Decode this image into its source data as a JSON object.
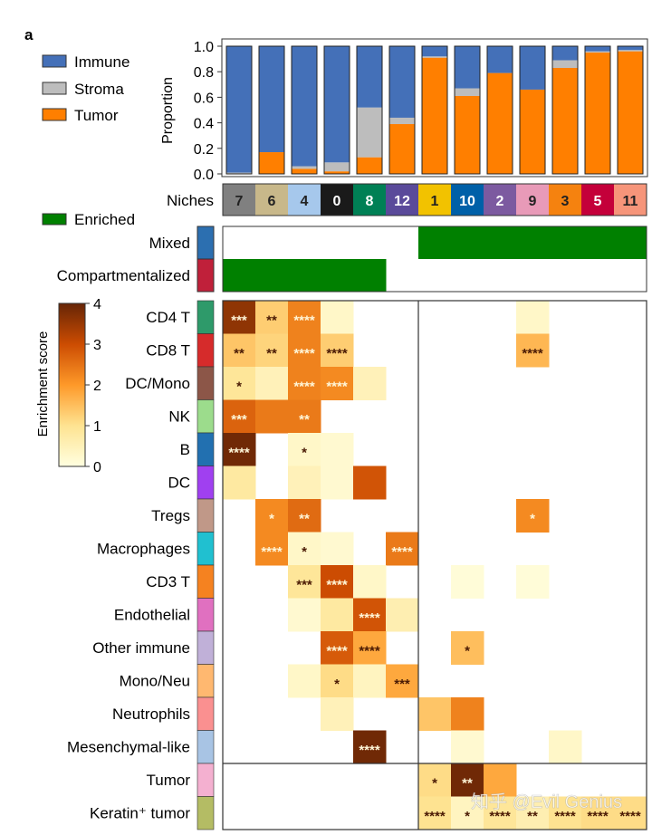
{
  "panel_label": "a",
  "chart_data": [
    {
      "type": "bar",
      "stacked": true,
      "title": "",
      "ylabel": "Proportion",
      "xlabel": "Niches",
      "ylim": [
        0,
        1.0
      ],
      "yticks": [
        "0.0",
        "0.2",
        "0.4",
        "0.6",
        "0.8",
        "1.0"
      ],
      "categories": [
        "7",
        "6",
        "4",
        "0",
        "8",
        "12",
        "1",
        "10",
        "2",
        "9",
        "3",
        "5",
        "11"
      ],
      "category_colors": [
        "#808080",
        "#c8b88a",
        "#a6c8ec",
        "#1a1a1a",
        "#008055",
        "#5a4a9a",
        "#f2c200",
        "#0060a8",
        "#7c5aa0",
        "#e89ab8",
        "#f5820f",
        "#c4003a",
        "#f6957a"
      ],
      "category_text_colors": [
        "#222222",
        "#222222",
        "#222222",
        "#ffffff",
        "#ffffff",
        "#ffffff",
        "#222222",
        "#ffffff",
        "#ffffff",
        "#222222",
        "#222222",
        "#ffffff",
        "#222222"
      ],
      "series": [
        {
          "name": "Tumor",
          "color": "#ff7f00",
          "values": [
            0.0,
            0.17,
            0.04,
            0.02,
            0.13,
            0.39,
            0.91,
            0.61,
            0.79,
            0.66,
            0.83,
            0.95,
            0.96
          ]
        },
        {
          "name": "Stroma",
          "color": "#bdbdbd",
          "values": [
            0.01,
            0.0,
            0.02,
            0.07,
            0.39,
            0.05,
            0.01,
            0.06,
            0.0,
            0.0,
            0.06,
            0.01,
            0.01
          ]
        },
        {
          "name": "Immune",
          "color": "#4470b8",
          "values": [
            0.99,
            0.83,
            0.94,
            0.91,
            0.48,
            0.56,
            0.08,
            0.33,
            0.21,
            0.34,
            0.11,
            0.04,
            0.03
          ]
        }
      ],
      "legend": {
        "position": "top-left",
        "items": [
          "Immune",
          "Stroma",
          "Tumor"
        ]
      }
    },
    {
      "type": "heatmap",
      "title": "Niche type",
      "legend": {
        "label": "Enriched",
        "color": "#008000"
      },
      "rows": [
        {
          "label": "Mixed",
          "color": "#2c6fb0",
          "enriched": [
            0,
            0,
            0,
            0,
            0,
            0,
            1,
            1,
            1,
            1,
            1,
            1,
            1
          ]
        },
        {
          "label": "Compartmentalized",
          "color": "#c0203a",
          "enriched": [
            1,
            1,
            1,
            1,
            1,
            0,
            0,
            0,
            0,
            0,
            0,
            0,
            0
          ]
        }
      ]
    },
    {
      "type": "heatmap",
      "colorbar": {
        "label": "Enrichment score",
        "range": [
          0,
          4
        ],
        "ticks": [
          "0",
          "1",
          "2",
          "3",
          "4"
        ]
      },
      "columns": [
        "7",
        "6",
        "4",
        "0",
        "8",
        "12",
        "1",
        "10",
        "2",
        "9",
        "3",
        "5",
        "11"
      ],
      "rows": [
        {
          "label": "CD4 T",
          "color": "#2e9a6a",
          "scores": [
            3.6,
            1.3,
            2.3,
            0.3,
            0,
            0,
            0,
            0,
            0,
            0.3,
            0,
            0,
            0
          ],
          "sig": [
            "***",
            "**",
            "****",
            "",
            "",
            "",
            "",
            "",
            "",
            "",
            "",
            "",
            ""
          ]
        },
        {
          "label": "CD8 T",
          "color": "#d62b2b",
          "scores": [
            1.4,
            1.2,
            2.3,
            1.3,
            0,
            0,
            0,
            0,
            0,
            1.6,
            0,
            0,
            0
          ],
          "sig": [
            "**",
            "**",
            "****",
            "****",
            "",
            "",
            "",
            "",
            "",
            "****",
            "",
            "",
            ""
          ]
        },
        {
          "label": "DC/Mono",
          "color": "#8c5648",
          "scores": [
            0.9,
            0.5,
            2.3,
            2.2,
            0.5,
            0,
            0,
            0,
            0,
            0,
            0,
            0,
            0
          ],
          "sig": [
            "*",
            "",
            "****",
            "****",
            "",
            "",
            "",
            "",
            "",
            "",
            "",
            "",
            ""
          ]
        },
        {
          "label": "NK",
          "color": "#9cdc8c",
          "scores": [
            2.7,
            2.4,
            2.4,
            0,
            0,
            0,
            0,
            0,
            0,
            0,
            0,
            0,
            0
          ],
          "sig": [
            "***",
            "",
            "**",
            "",
            "",
            "",
            "",
            "",
            "",
            "",
            "",
            "",
            ""
          ]
        },
        {
          "label": "B",
          "color": "#2270b0",
          "scores": [
            3.9,
            0,
            0.3,
            0.2,
            0,
            0,
            0,
            0,
            0,
            0,
            0,
            0,
            0
          ],
          "sig": [
            "****",
            "",
            "*",
            "",
            "",
            "",
            "",
            "",
            "",
            "",
            "",
            "",
            ""
          ]
        },
        {
          "label": "DC",
          "color": "#a040f0",
          "scores": [
            0.8,
            0,
            0.5,
            0.2,
            2.9,
            0,
            0,
            0,
            0,
            0,
            0,
            0,
            0
          ],
          "sig": [
            "",
            "",
            "",
            "",
            "",
            "",
            "",
            "",
            "",
            "",
            "",
            "",
            ""
          ]
        },
        {
          "label": "Tregs",
          "color": "#c09888",
          "scores": [
            0,
            2.2,
            2.6,
            0,
            0,
            0,
            0,
            0,
            0,
            2.2,
            0,
            0,
            0
          ],
          "sig": [
            "",
            "*",
            "**",
            "",
            "",
            "",
            "",
            "",
            "",
            "*",
            "",
            "",
            ""
          ]
        },
        {
          "label": "Macrophages",
          "color": "#20c0d0",
          "scores": [
            0,
            2.2,
            0.3,
            0.2,
            0,
            2.4,
            0,
            0,
            0,
            0,
            0,
            0,
            0
          ],
          "sig": [
            "",
            "****",
            "*",
            "",
            "",
            "****",
            "",
            "",
            "",
            "",
            "",
            "",
            ""
          ]
        },
        {
          "label": "CD3 T",
          "color": "#f58220",
          "scores": [
            0,
            0,
            0.9,
            3.0,
            0.3,
            0,
            0,
            0.1,
            0,
            0.1,
            0,
            0,
            0
          ],
          "sig": [
            "",
            "",
            "***",
            "****",
            "",
            "",
            "",
            "",
            "",
            "",
            "",
            "",
            ""
          ]
        },
        {
          "label": "Endothelial",
          "color": "#e070c0",
          "scores": [
            0,
            0,
            0.2,
            0.8,
            2.9,
            0.6,
            0,
            0,
            0,
            0,
            0,
            0,
            0
          ],
          "sig": [
            "",
            "",
            "",
            "",
            "****",
            "",
            "",
            "",
            "",
            "",
            "",
            "",
            ""
          ]
        },
        {
          "label": "Other immune",
          "color": "#c0b0d8",
          "scores": [
            0,
            0,
            0,
            2.8,
            1.8,
            0,
            0,
            1.5,
            0,
            0,
            0,
            0,
            0
          ],
          "sig": [
            "",
            "",
            "",
            "****",
            "****",
            "",
            "",
            "*",
            "",
            "",
            "",
            "",
            ""
          ]
        },
        {
          "label": "Mono/Neu",
          "color": "#ffb870",
          "scores": [
            0,
            0,
            0.3,
            1.1,
            0.4,
            1.8,
            0,
            0,
            0,
            0,
            0,
            0,
            0
          ],
          "sig": [
            "",
            "",
            "",
            "*",
            "",
            "***",
            "",
            "",
            "",
            "",
            "",
            "",
            ""
          ]
        },
        {
          "label": "Neutrophils",
          "color": "#fa9090",
          "scores": [
            0,
            0,
            0,
            0.5,
            0,
            0,
            1.4,
            2.3,
            0,
            0,
            0,
            0,
            0
          ],
          "sig": [
            "",
            "",
            "",
            "",
            "",
            "",
            "",
            "",
            "",
            "",
            "",
            "",
            ""
          ]
        },
        {
          "label": "Mesenchymal-like",
          "color": "#a8c4e4",
          "scores": [
            0,
            0,
            0,
            0,
            3.9,
            0,
            0,
            0.2,
            0,
            0,
            0.3,
            0,
            0
          ],
          "sig": [
            "",
            "",
            "",
            "",
            "****",
            "",
            "",
            "",
            "",
            "",
            "",
            "",
            ""
          ]
        },
        {
          "label": "Tumor",
          "color": "#f4b0d0",
          "scores": [
            0,
            0,
            0,
            0,
            0,
            0,
            1.1,
            3.9,
            1.8,
            0,
            0,
            0,
            0
          ],
          "sig": [
            "",
            "",
            "",
            "",
            "",
            "",
            "*",
            "**",
            "",
            "",
            "",
            "",
            ""
          ]
        },
        {
          "label": "Keratin⁺ tumor",
          "color": "#b4bc64",
          "scores": [
            0,
            0,
            0,
            0,
            0,
            0,
            1.0,
            0.4,
            0.9,
            0.6,
            1.0,
            1.1,
            1.1
          ],
          "sig": [
            "",
            "",
            "",
            "",
            "",
            "",
            "****",
            "*",
            "****",
            "**",
            "****",
            "****",
            "****"
          ]
        }
      ]
    }
  ],
  "watermark": "知乎 @Evil Genius"
}
